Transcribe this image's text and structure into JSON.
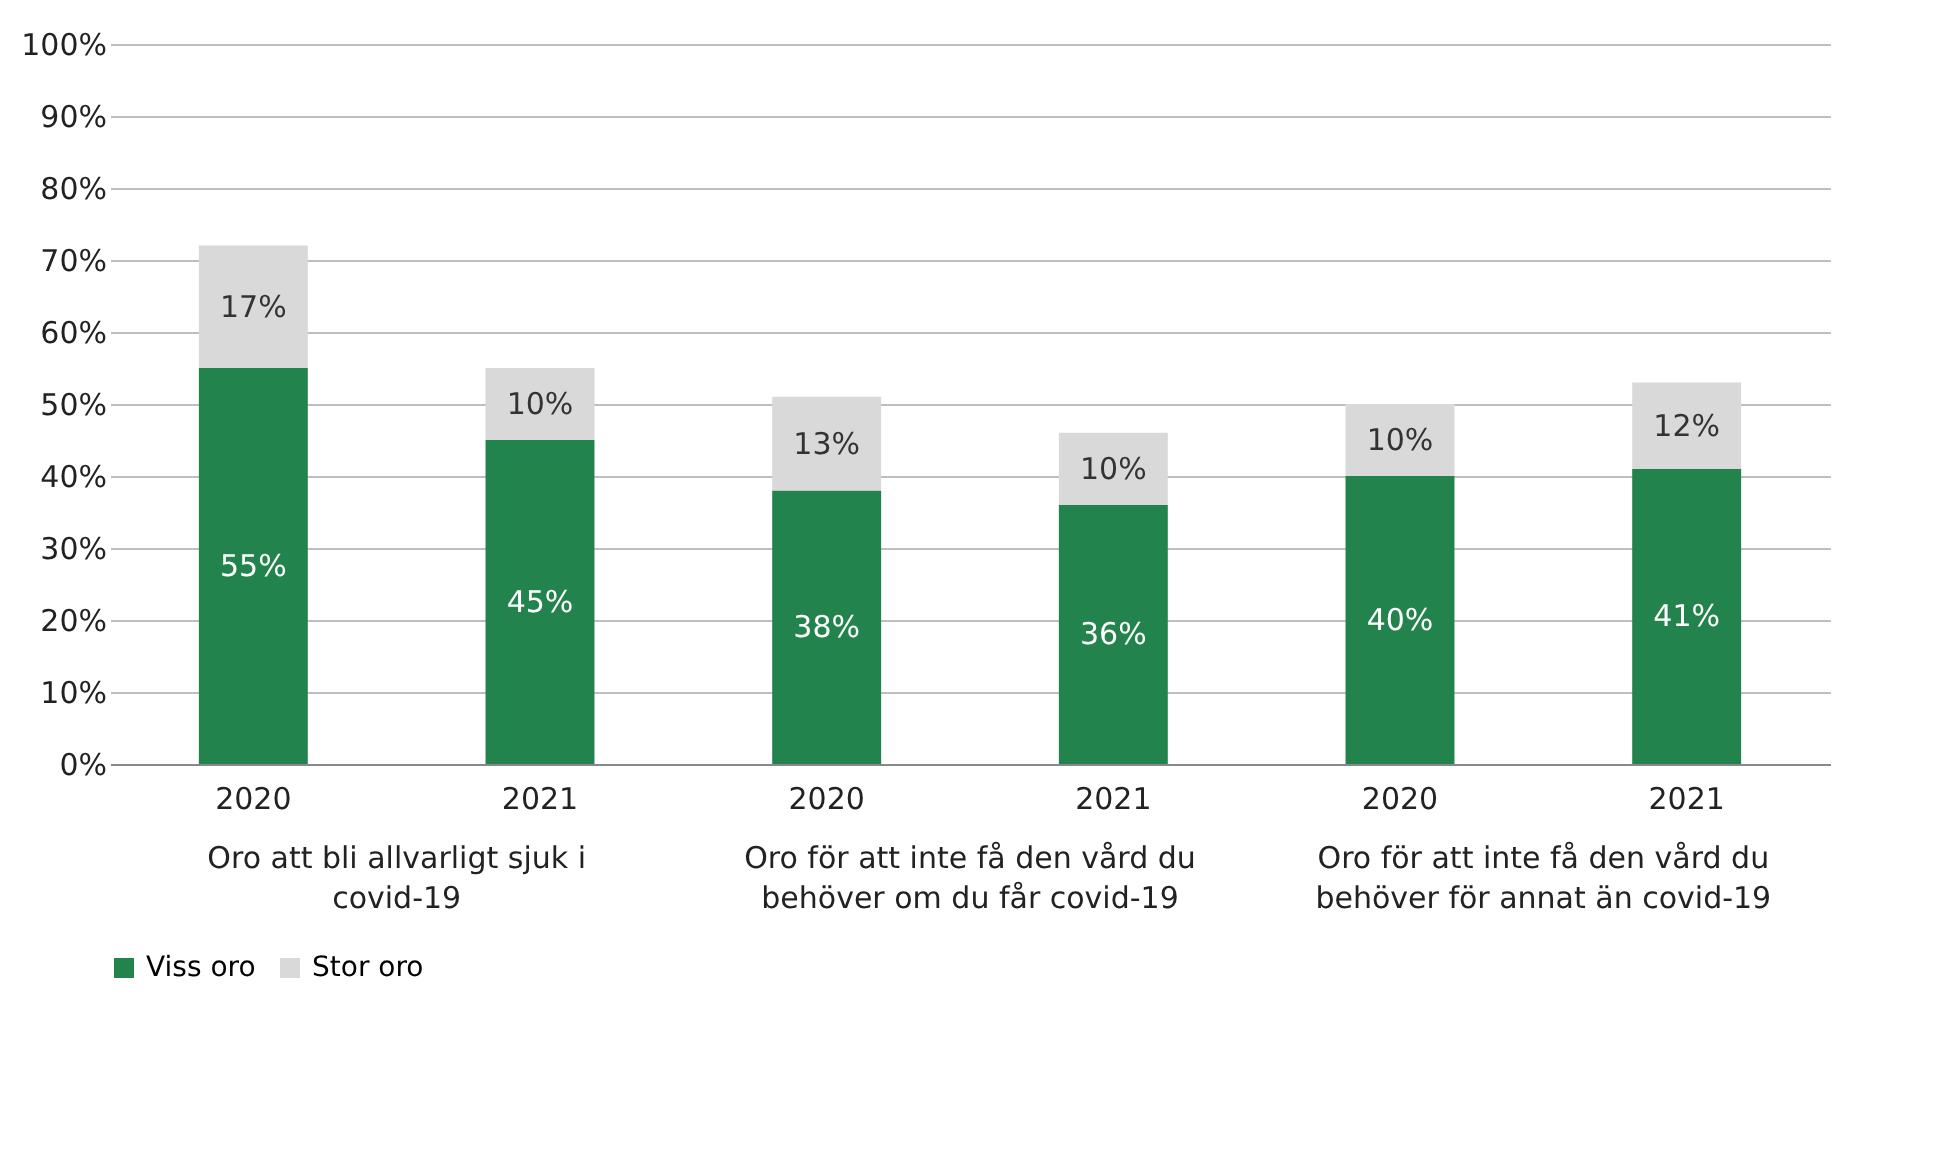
{
  "chart_data": {
    "type": "bar",
    "stacked": true,
    "categories": [
      "2020",
      "2021",
      "2020",
      "2021",
      "2020",
      "2021"
    ],
    "series": [
      {
        "name": "Viss oro",
        "color": "#23834c",
        "values": [
          55,
          45,
          38,
          36,
          40,
          41
        ],
        "value_labels": [
          "55%",
          "45%",
          "38%",
          "36%",
          "40%",
          "41%"
        ]
      },
      {
        "name": "Stor oro",
        "color": "#d9d9d9",
        "values": [
          17,
          10,
          13,
          10,
          10,
          12
        ],
        "value_labels": [
          "17%",
          "10%",
          "13%",
          "10%",
          "10%",
          "12%"
        ]
      }
    ],
    "annotations": [
      "Oro att bli allvarligt sjuk i covid-19",
      "Oro för att inte få den vård du behöver om du får covid-19",
      "Oro för att inte få den vård du behöver för annat än covid-19"
    ],
    "ylim": [
      0,
      100
    ],
    "yticks": [
      {
        "value": 0,
        "label": "0%"
      },
      {
        "value": 10,
        "label": "10%"
      },
      {
        "value": 20,
        "label": "20%"
      },
      {
        "value": 30,
        "label": "30%"
      },
      {
        "value": 40,
        "label": "40%"
      },
      {
        "value": 50,
        "label": "50%"
      },
      {
        "value": 60,
        "label": "60%"
      },
      {
        "value": 70,
        "label": "70%"
      },
      {
        "value": 80,
        "label": "80%"
      },
      {
        "value": 90,
        "label": "90%"
      },
      {
        "value": 100,
        "label": "100%"
      }
    ],
    "grid": "y",
    "legend": "bottom"
  }
}
